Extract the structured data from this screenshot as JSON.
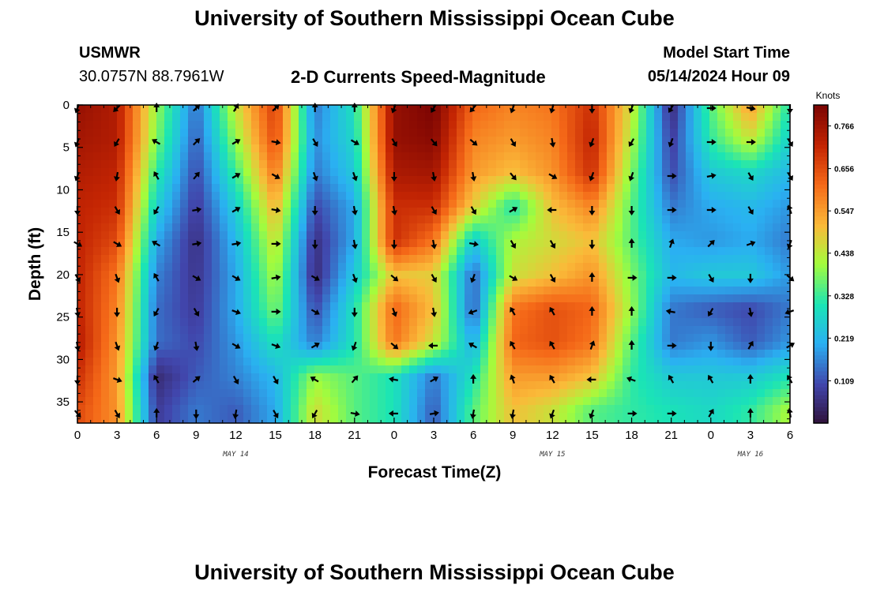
{
  "header": {
    "title": "University of Southern Mississippi Ocean Cube",
    "station": "USMWR",
    "coords": "30.0757N  88.7961W",
    "subtitle": "2-D Currents Speed-Magnitude",
    "model_label": "Model Start Time",
    "model_time": "05/14/2024 Hour 09"
  },
  "footer": {
    "title": "University of Southern Mississippi Ocean Cube"
  },
  "colors": {
    "low": "#30123b",
    "mid": "#a4fc3c",
    "high": "#7a0403",
    "arrow": "#000000"
  },
  "chart_data": {
    "type": "heatmap",
    "title": "2-D Currents Speed-Magnitude",
    "xlabel": "Forecast Time(Z)",
    "ylabel": "Depth (ft)",
    "x_ticks": [
      "0",
      "3",
      "6",
      "9",
      "12",
      "15",
      "18",
      "21",
      "0",
      "3",
      "6",
      "9",
      "12",
      "15",
      "18",
      "21",
      "0",
      "3",
      "6"
    ],
    "x_range": [
      0,
      54
    ],
    "y_ticks": [
      "0",
      "5",
      "10",
      "15",
      "20",
      "25",
      "30",
      "35"
    ],
    "y_range": [
      0,
      37.5
    ],
    "date_labels": [
      {
        "label": "MAY 14",
        "hour": 12
      },
      {
        "label": "MAY 15",
        "hour": 36
      },
      {
        "label": "MAY 16",
        "hour": 51
      }
    ],
    "colorbar": {
      "label": "Knots",
      "ticks": [
        "0.766",
        "0.656",
        "0.547",
        "0.438",
        "0.328",
        "0.219",
        "0.109"
      ],
      "range": [
        0,
        0.82
      ]
    },
    "x_hours": [
      0,
      3,
      6,
      9,
      12,
      15,
      18,
      21,
      24,
      27,
      30,
      33,
      36,
      39,
      42,
      45,
      48,
      51,
      54
    ],
    "depths_ft": [
      0,
      4,
      8,
      12,
      16,
      20,
      24,
      28,
      32,
      36
    ],
    "speed_knots": [
      [
        0.78,
        0.74,
        0.4,
        0.14,
        0.45,
        0.68,
        0.15,
        0.3,
        0.78,
        0.82,
        0.62,
        0.58,
        0.6,
        0.7,
        0.45,
        0.05,
        0.35,
        0.55,
        0.3
      ],
      [
        0.76,
        0.74,
        0.38,
        0.12,
        0.4,
        0.66,
        0.17,
        0.28,
        0.78,
        0.8,
        0.58,
        0.55,
        0.58,
        0.72,
        0.42,
        0.08,
        0.32,
        0.45,
        0.26
      ],
      [
        0.74,
        0.72,
        0.32,
        0.1,
        0.33,
        0.6,
        0.15,
        0.25,
        0.75,
        0.76,
        0.55,
        0.5,
        0.56,
        0.7,
        0.38,
        0.1,
        0.25,
        0.28,
        0.22
      ],
      [
        0.72,
        0.7,
        0.26,
        0.08,
        0.26,
        0.52,
        0.1,
        0.2,
        0.7,
        0.7,
        0.48,
        0.3,
        0.5,
        0.58,
        0.35,
        0.15,
        0.2,
        0.22,
        0.18
      ],
      [
        0.72,
        0.66,
        0.2,
        0.06,
        0.22,
        0.46,
        0.06,
        0.2,
        0.7,
        0.6,
        0.25,
        0.42,
        0.46,
        0.5,
        0.35,
        0.2,
        0.18,
        0.2,
        0.15
      ],
      [
        0.72,
        0.6,
        0.16,
        0.07,
        0.2,
        0.42,
        0.05,
        0.25,
        0.5,
        0.48,
        0.13,
        0.45,
        0.5,
        0.56,
        0.38,
        0.22,
        0.25,
        0.25,
        0.18
      ],
      [
        0.72,
        0.58,
        0.14,
        0.08,
        0.2,
        0.38,
        0.1,
        0.3,
        0.62,
        0.5,
        0.12,
        0.6,
        0.65,
        0.62,
        0.4,
        0.15,
        0.12,
        0.1,
        0.15
      ],
      [
        0.74,
        0.56,
        0.14,
        0.1,
        0.18,
        0.3,
        0.15,
        0.3,
        0.6,
        0.45,
        0.2,
        0.62,
        0.65,
        0.6,
        0.35,
        0.15,
        0.18,
        0.12,
        0.18
      ],
      [
        0.7,
        0.55,
        0.05,
        0.12,
        0.16,
        0.22,
        0.4,
        0.35,
        0.3,
        0.15,
        0.3,
        0.55,
        0.55,
        0.5,
        0.32,
        0.25,
        0.25,
        0.25,
        0.3
      ],
      [
        0.66,
        0.56,
        0.08,
        0.15,
        0.12,
        0.2,
        0.46,
        0.35,
        0.3,
        0.12,
        0.35,
        0.5,
        0.45,
        0.35,
        0.32,
        0.3,
        0.28,
        0.32,
        0.42
      ]
    ],
    "direction_deg": [
      [
        200,
        225,
        0,
        45,
        30,
        45,
        0,
        0,
        200,
        210,
        220,
        200,
        195,
        180,
        200,
        210,
        90,
        100,
        180
      ],
      [
        200,
        210,
        300,
        45,
        60,
        100,
        150,
        120,
        150,
        140,
        130,
        150,
        170,
        200,
        210,
        200,
        90,
        90,
        150
      ],
      [
        200,
        190,
        330,
        40,
        60,
        120,
        160,
        160,
        180,
        170,
        170,
        140,
        120,
        200,
        200,
        90,
        80,
        150,
        150
      ],
      [
        180,
        150,
        210,
        80,
        60,
        100,
        180,
        170,
        170,
        150,
        150,
        60,
        270,
        180,
        180,
        90,
        90,
        150,
        340
      ],
      [
        120,
        120,
        300,
        80,
        80,
        90,
        180,
        170,
        180,
        170,
        100,
        150,
        150,
        180,
        0,
        20,
        45,
        70,
        200
      ],
      [
        150,
        160,
        330,
        120,
        120,
        80,
        120,
        160,
        130,
        150,
        200,
        120,
        150,
        0,
        90,
        90,
        150,
        180,
        130
      ],
      [
        170,
        180,
        210,
        150,
        110,
        90,
        120,
        180,
        160,
        170,
        250,
        330,
        330,
        0,
        0,
        280,
        210,
        170,
        250
      ],
      [
        170,
        160,
        200,
        170,
        120,
        110,
        60,
        200,
        130,
        270,
        300,
        330,
        330,
        20,
        0,
        90,
        180,
        30,
        60
      ],
      [
        180,
        110,
        330,
        50,
        150,
        150,
        300,
        40,
        280,
        60,
        0,
        340,
        330,
        270,
        290,
        330,
        330,
        0,
        330
      ],
      [
        140,
        150,
        0,
        180,
        190,
        150,
        210,
        100,
        270,
        80,
        190,
        190,
        200,
        200,
        90,
        90,
        30,
        0,
        350
      ]
    ]
  }
}
